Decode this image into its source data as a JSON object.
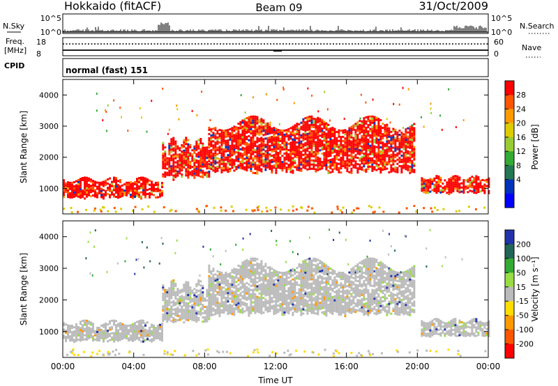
{
  "header": {
    "station": "Hokkaido (fitACF)",
    "beam": "Beam 09",
    "date": "31/Oct/2009"
  },
  "nsky_panel": {
    "left_label": "N.Sky",
    "right_label": "N.Search",
    "left_ticks": [
      "10^5",
      "10^0"
    ],
    "right_ticks": [
      "10^5",
      "10^0"
    ]
  },
  "freq_panel": {
    "left_label_line1": "Freq.",
    "left_label_line2": "[MHz]",
    "left_ticks": [
      "18",
      "8"
    ],
    "right_label": "Nave",
    "right_ticks": [
      "60",
      "0"
    ],
    "cpid_label": "CPID",
    "cpid_value": "normal (fast) 151"
  },
  "chart_data": [
    {
      "type": "heatmap",
      "panel": "power",
      "ylabel": "Slant Range [km]",
      "ylim": [
        180,
        4500
      ],
      "y_ticks": [
        1000,
        2000,
        3000,
        4000
      ],
      "x_ticks": [
        "00:00",
        "04:00",
        "08:00",
        "12:00",
        "16:00",
        "20:00",
        "00:00"
      ],
      "xlim_hours": [
        0,
        24
      ],
      "colorbar": {
        "label": "Power [dB]",
        "tick_labels": [
          "28",
          "24",
          "20",
          "16",
          "12",
          "8",
          "4"
        ],
        "colors_top_to_bottom": [
          "#ff0000",
          "#ff5500",
          "#ff9900",
          "#ddcc00",
          "#99cc33",
          "#33aa33",
          "#227755",
          "#0033bb",
          "#0000ff"
        ]
      },
      "echo_bands": [
        {
          "name": "morning",
          "x_hours": [
            0,
            5.6
          ],
          "y_km": [
            700,
            1400
          ],
          "level": 28
        },
        {
          "name": "ramp",
          "x_hours": [
            5.6,
            8.2
          ],
          "y_km": [
            1300,
            2700
          ],
          "level": 24
        },
        {
          "name": "main",
          "x_hours": [
            8.2,
            19.8
          ],
          "y_km": [
            1500,
            3400
          ],
          "level": 28
        },
        {
          "name": "evening",
          "x_hours": [
            20.2,
            24
          ],
          "y_km": [
            850,
            1450
          ],
          "level": 28
        }
      ]
    },
    {
      "type": "heatmap",
      "panel": "velocity",
      "ylabel": "Slant Range [km]",
      "ylim": [
        180,
        4500
      ],
      "y_ticks": [
        1000,
        2000,
        3000,
        4000
      ],
      "x_ticks": [
        "00:00",
        "04:00",
        "08:00",
        "12:00",
        "16:00",
        "20:00",
        "00:00"
      ],
      "xlim_hours": [
        0,
        24
      ],
      "xlabel": "Time UT",
      "colorbar": {
        "label": "Velocity [m s⁻¹]",
        "tick_labels": [
          "200",
          "100",
          "50",
          "15",
          "-15",
          "-50",
          "-100",
          "-200"
        ],
        "colors_top_to_bottom": [
          "#2233aa",
          "#226655",
          "#33aa33",
          "#99dd44",
          "#bbbbbb",
          "#ffdd00",
          "#ff9900",
          "#ff5500",
          "#ff0000"
        ]
      },
      "echo_bands": [
        {
          "name": "morning",
          "x_hours": [
            0,
            5.6
          ],
          "y_km": [
            700,
            1400
          ],
          "level": 0
        },
        {
          "name": "ramp",
          "x_hours": [
            5.6,
            8.2
          ],
          "y_km": [
            1300,
            2700
          ],
          "level": 0
        },
        {
          "name": "main",
          "x_hours": [
            8.2,
            19.8
          ],
          "y_km": [
            1500,
            3400
          ],
          "level": 0
        },
        {
          "name": "evening",
          "x_hours": [
            20.2,
            24
          ],
          "y_km": [
            850,
            1450
          ],
          "level": 0
        }
      ]
    }
  ]
}
